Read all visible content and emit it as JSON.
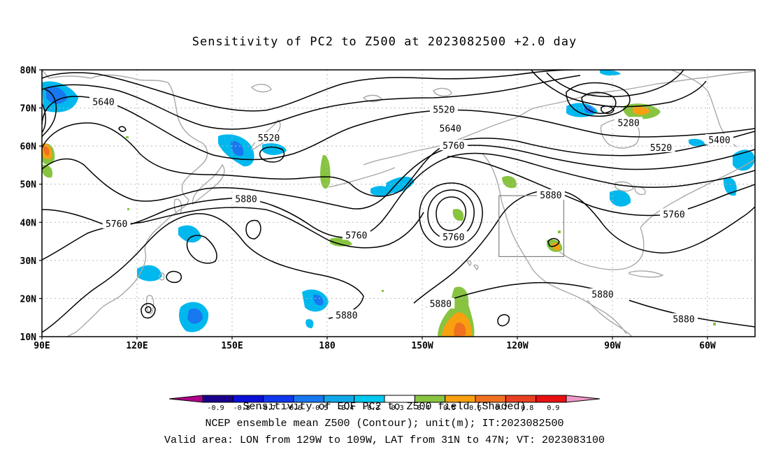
{
  "title": "Sensitivity of PC2 to Z500 at 2023082500 +2.0 day",
  "lat_labels": [
    "80N",
    "70N",
    "60N",
    "50N",
    "40N",
    "30N",
    "20N",
    "10N"
  ],
  "lon_labels": [
    "90E",
    "120E",
    "150E",
    "180",
    "150W",
    "120W",
    "90W",
    "60W"
  ],
  "contour_labels": [
    {
      "text": "5640",
      "lon": 109,
      "lat": 71.5
    },
    {
      "text": "5520",
      "lon": 160,
      "lat": 62
    },
    {
      "text": "5520",
      "lon": -146,
      "lat": 69.5
    },
    {
      "text": "5640",
      "lon": -144,
      "lat": 64.5
    },
    {
      "text": "5760",
      "lon": -143,
      "lat": 60
    },
    {
      "text": "5280",
      "lon": -89,
      "lat": 66
    },
    {
      "text": "5520",
      "lon": -79,
      "lat": 59.5
    },
    {
      "text": "5400",
      "lon": -61,
      "lat": 61.5
    },
    {
      "text": "5880",
      "lon": 153,
      "lat": 46
    },
    {
      "text": "5760",
      "lon": 113,
      "lat": 39.5
    },
    {
      "text": "5760",
      "lon": -173,
      "lat": 36.5
    },
    {
      "text": "5760",
      "lon": -143,
      "lat": 36
    },
    {
      "text": "5880",
      "lon": -113,
      "lat": 47
    },
    {
      "text": "5760",
      "lon": -75,
      "lat": 42
    },
    {
      "text": "5880",
      "lon": -176,
      "lat": 15.5
    },
    {
      "text": "5880",
      "lon": -147,
      "lat": 18.5
    },
    {
      "text": "5880",
      "lon": -97,
      "lat": 21
    },
    {
      "text": "5880",
      "lon": -72,
      "lat": 14.5
    }
  ],
  "colorbar": {
    "labels": [
      "-0.9",
      "-0.8",
      "-0.7",
      "-0.6",
      "-0.5",
      "-0.4",
      "-0.3",
      "0.3",
      "0.4",
      "0.5",
      "0.6",
      "0.7",
      "0.8",
      "0.9"
    ],
    "colors": [
      "#b0008a",
      "#1a008c",
      "#0a10d8",
      "#1038f0",
      "#1878f0",
      "#10a8e8",
      "#00c8f0",
      "#ffffff",
      "#88c440",
      "#f8a010",
      "#f07020",
      "#e84020",
      "#e81010",
      "#f098c8"
    ]
  },
  "captions": [
    "Sensitivity of EOF PC2 to Z500 field (Shaded)",
    "NCEP ensemble mean Z500 (Contour); unit(m); IT:2023082500",
    "Valid area: LON from 129W to 109W, LAT from 31N to 47N; VT: 2023083100"
  ],
  "valid_area": {
    "lon_min": -129,
    "lon_max": -109,
    "lat_min": 31,
    "lat_max": 47
  }
}
